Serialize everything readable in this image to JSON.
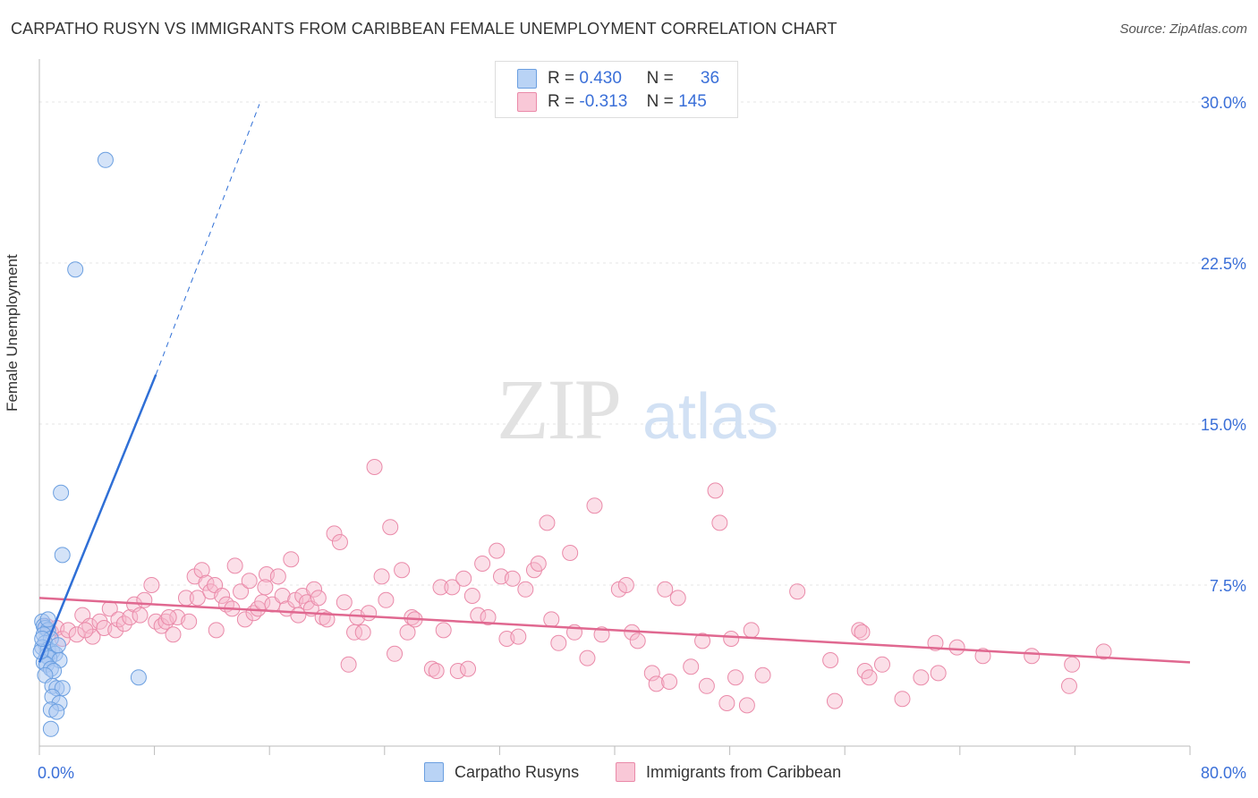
{
  "title": "CARPATHO RUSYN VS IMMIGRANTS FROM CARIBBEAN FEMALE UNEMPLOYMENT CORRELATION CHART",
  "source": "Source: ZipAtlas.com",
  "watermark": {
    "zip": "ZIP",
    "atlas": "atlas"
  },
  "legend": {
    "rows": [
      {
        "r_label": "R =",
        "r_value": "0.430",
        "n_label": "N =",
        "n_value": "36"
      },
      {
        "r_label": "R =",
        "r_value": "-0.313",
        "n_label": "N =",
        "n_value": "145"
      }
    ]
  },
  "bottom_legend": [
    "Carpatho Rusyns",
    "Immigrants from Caribbean"
  ],
  "chart_data": {
    "type": "scatter",
    "xlabel": "",
    "ylabel": "Female Unemployment",
    "xlim": [
      0,
      80
    ],
    "ylim": [
      0,
      31.5
    ],
    "x_tick_labels": [
      "0.0%",
      "80.0%"
    ],
    "y_ticks": [
      7.5,
      15.0,
      22.5,
      30.0
    ],
    "y_tick_labels": [
      "7.5%",
      "15.0%",
      "22.5%",
      "30.0%"
    ],
    "grid": true,
    "colors": {
      "blue_fill": "#a9c8f2",
      "blue_stroke": "#6b9fe0",
      "blue_line": "#2f6fd6",
      "pink_fill": "#f7b8cc",
      "pink_stroke": "#ea8aa9",
      "pink_line": "#e06890",
      "axis_text": "#3a6fd8"
    },
    "series": [
      {
        "name": "Carpatho Rusyns",
        "r": 0.43,
        "n": 36,
        "trend": {
          "x0": 0.0,
          "y0": 3.9,
          "x1": 8.1,
          "y1": 17.3,
          "dash_x1": 15.3,
          "dash_y1": 29.9
        },
        "points": [
          [
            4.6,
            27.3
          ],
          [
            2.5,
            22.2
          ],
          [
            1.5,
            11.8
          ],
          [
            1.6,
            8.9
          ],
          [
            6.9,
            3.2
          ],
          [
            0.2,
            5.8
          ],
          [
            0.3,
            5.6
          ],
          [
            0.4,
            5.5
          ],
          [
            0.6,
            5.4
          ],
          [
            0.3,
            5.2
          ],
          [
            0.8,
            5.0
          ],
          [
            0.4,
            4.8
          ],
          [
            0.2,
            4.6
          ],
          [
            0.6,
            4.5
          ],
          [
            0.9,
            4.4
          ],
          [
            1.1,
            4.3
          ],
          [
            0.5,
            4.2
          ],
          [
            0.7,
            4.1
          ],
          [
            1.4,
            4.0
          ],
          [
            0.3,
            3.9
          ],
          [
            0.5,
            3.8
          ],
          [
            0.8,
            3.6
          ],
          [
            1.0,
            3.5
          ],
          [
            0.4,
            3.3
          ],
          [
            0.9,
            2.8
          ],
          [
            1.2,
            2.7
          ],
          [
            1.6,
            2.7
          ],
          [
            0.9,
            2.3
          ],
          [
            1.4,
            2.0
          ],
          [
            0.8,
            1.7
          ],
          [
            1.2,
            1.6
          ],
          [
            0.8,
            0.8
          ],
          [
            0.1,
            4.4
          ],
          [
            0.2,
            5.0
          ],
          [
            0.6,
            5.9
          ],
          [
            1.3,
            4.7
          ]
        ]
      },
      {
        "name": "Immigrants from Caribbean",
        "r": -0.313,
        "n": 145,
        "trend": {
          "x0": 0.0,
          "y0": 6.9,
          "x1": 80.0,
          "y1": 3.9
        },
        "points": [
          [
            0.5,
            5.6
          ],
          [
            0.8,
            5.3
          ],
          [
            1.2,
            5.5
          ],
          [
            1.6,
            5.0
          ],
          [
            2.0,
            5.4
          ],
          [
            2.6,
            5.2
          ],
          [
            3.0,
            6.1
          ],
          [
            3.5,
            5.6
          ],
          [
            3.7,
            5.1
          ],
          [
            4.2,
            5.8
          ],
          [
            4.5,
            5.5
          ],
          [
            4.9,
            6.4
          ],
          [
            5.3,
            5.4
          ],
          [
            5.5,
            5.9
          ],
          [
            5.9,
            5.7
          ],
          [
            6.3,
            6.0
          ],
          [
            6.6,
            6.6
          ],
          [
            7.0,
            6.1
          ],
          [
            7.3,
            6.8
          ],
          [
            7.8,
            7.5
          ],
          [
            8.1,
            5.8
          ],
          [
            8.5,
            5.6
          ],
          [
            8.8,
            5.8
          ],
          [
            9.3,
            5.2
          ],
          [
            9.6,
            6.0
          ],
          [
            10.2,
            6.9
          ],
          [
            10.4,
            5.8
          ],
          [
            10.8,
            7.9
          ],
          [
            11.0,
            6.9
          ],
          [
            11.3,
            8.2
          ],
          [
            11.6,
            7.6
          ],
          [
            11.9,
            7.2
          ],
          [
            12.2,
            7.5
          ],
          [
            12.3,
            5.4
          ],
          [
            12.7,
            7.0
          ],
          [
            13.0,
            6.6
          ],
          [
            13.4,
            6.4
          ],
          [
            13.6,
            8.4
          ],
          [
            14.0,
            7.2
          ],
          [
            14.3,
            5.9
          ],
          [
            14.6,
            7.7
          ],
          [
            14.9,
            6.2
          ],
          [
            15.2,
            6.4
          ],
          [
            15.5,
            6.7
          ],
          [
            15.8,
            8.0
          ],
          [
            16.2,
            6.6
          ],
          [
            16.6,
            7.9
          ],
          [
            16.9,
            7.0
          ],
          [
            17.2,
            6.4
          ],
          [
            17.5,
            8.7
          ],
          [
            17.8,
            6.8
          ],
          [
            18.0,
            6.1
          ],
          [
            18.3,
            7.0
          ],
          [
            18.6,
            6.7
          ],
          [
            18.9,
            6.4
          ],
          [
            19.1,
            7.3
          ],
          [
            19.4,
            6.9
          ],
          [
            19.7,
            6.0
          ],
          [
            20.0,
            5.9
          ],
          [
            20.5,
            9.9
          ],
          [
            20.9,
            9.5
          ],
          [
            21.2,
            6.7
          ],
          [
            21.5,
            3.8
          ],
          [
            21.9,
            5.3
          ],
          [
            22.1,
            6.0
          ],
          [
            22.5,
            5.3
          ],
          [
            22.9,
            6.2
          ],
          [
            23.3,
            13.0
          ],
          [
            23.8,
            7.9
          ],
          [
            24.1,
            6.8
          ],
          [
            24.4,
            10.2
          ],
          [
            24.7,
            4.3
          ],
          [
            25.2,
            8.2
          ],
          [
            25.6,
            5.3
          ],
          [
            25.9,
            6.0
          ],
          [
            26.1,
            5.9
          ],
          [
            27.3,
            3.6
          ],
          [
            27.6,
            3.5
          ],
          [
            27.9,
            7.4
          ],
          [
            28.1,
            5.4
          ],
          [
            28.7,
            7.4
          ],
          [
            29.1,
            3.5
          ],
          [
            29.5,
            7.8
          ],
          [
            29.8,
            3.6
          ],
          [
            30.1,
            7.0
          ],
          [
            30.5,
            6.1
          ],
          [
            30.8,
            8.5
          ],
          [
            31.2,
            6.0
          ],
          [
            31.8,
            9.1
          ],
          [
            32.1,
            7.9
          ],
          [
            32.5,
            5.0
          ],
          [
            32.9,
            7.8
          ],
          [
            33.3,
            5.1
          ],
          [
            33.8,
            7.3
          ],
          [
            34.4,
            8.2
          ],
          [
            34.7,
            8.5
          ],
          [
            35.3,
            10.4
          ],
          [
            35.6,
            5.9
          ],
          [
            36.1,
            4.8
          ],
          [
            36.9,
            9.0
          ],
          [
            37.2,
            5.3
          ],
          [
            38.1,
            4.1
          ],
          [
            38.6,
            11.2
          ],
          [
            39.1,
            5.2
          ],
          [
            40.3,
            7.3
          ],
          [
            40.8,
            7.5
          ],
          [
            41.2,
            5.3
          ],
          [
            41.6,
            4.9
          ],
          [
            42.6,
            3.4
          ],
          [
            42.9,
            2.9
          ],
          [
            43.5,
            7.3
          ],
          [
            43.8,
            3.0
          ],
          [
            44.4,
            6.9
          ],
          [
            45.3,
            3.7
          ],
          [
            46.1,
            4.9
          ],
          [
            46.4,
            2.8
          ],
          [
            47.0,
            11.9
          ],
          [
            47.3,
            10.4
          ],
          [
            47.8,
            2.0
          ],
          [
            48.1,
            5.0
          ],
          [
            48.4,
            3.2
          ],
          [
            49.2,
            1.9
          ],
          [
            49.5,
            5.4
          ],
          [
            50.3,
            3.3
          ],
          [
            52.7,
            7.2
          ],
          [
            55.0,
            4.0
          ],
          [
            55.3,
            2.1
          ],
          [
            57.0,
            5.4
          ],
          [
            57.2,
            5.3
          ],
          [
            57.4,
            3.5
          ],
          [
            57.7,
            3.2
          ],
          [
            58.6,
            3.8
          ],
          [
            60.0,
            2.2
          ],
          [
            61.3,
            3.2
          ],
          [
            62.3,
            4.8
          ],
          [
            62.5,
            3.4
          ],
          [
            63.8,
            4.6
          ],
          [
            65.6,
            4.2
          ],
          [
            69.0,
            4.2
          ],
          [
            71.6,
            2.8
          ],
          [
            71.8,
            3.8
          ],
          [
            74.0,
            4.4
          ],
          [
            3.2,
            5.4
          ],
          [
            9.0,
            6.0
          ],
          [
            15.7,
            7.4
          ]
        ]
      }
    ]
  }
}
